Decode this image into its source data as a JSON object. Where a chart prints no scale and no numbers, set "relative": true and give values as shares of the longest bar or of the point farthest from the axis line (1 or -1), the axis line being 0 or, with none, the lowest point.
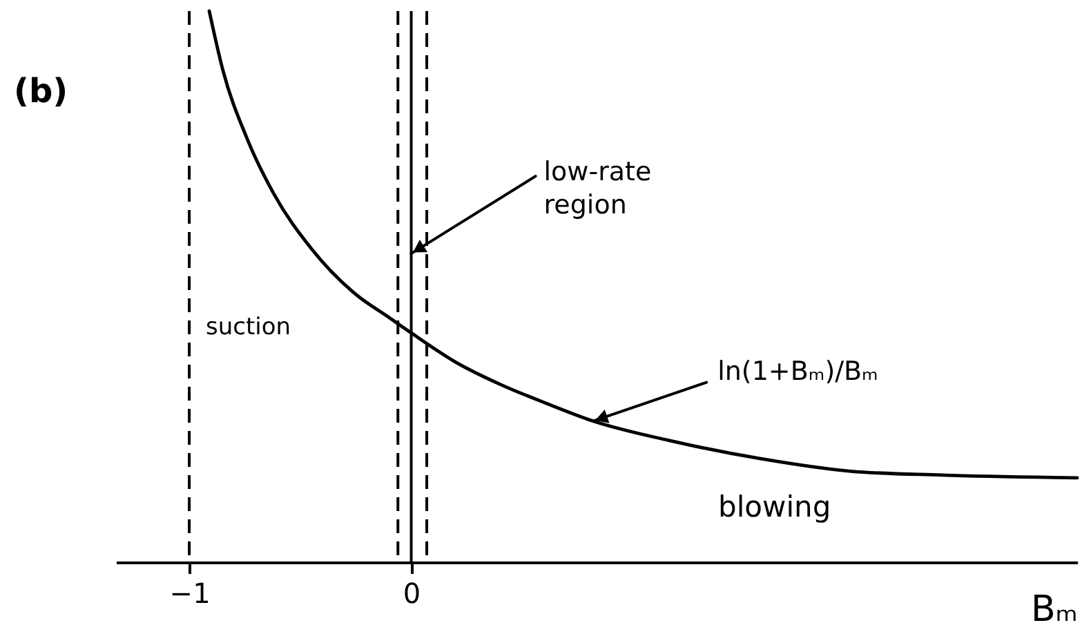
{
  "chart_data": {
    "type": "line",
    "title": "(b)",
    "xlabel": "Bₘ",
    "relative": true,
    "x": [
      -0.91,
      -0.85,
      -0.74,
      -0.62,
      -0.45,
      -0.25,
      -0.1,
      0,
      0.2,
      0.41,
      0.61,
      0.82,
      1.16,
      1.57,
      1.98,
      2.39,
      3.0
    ],
    "series": [
      {
        "color": "#000000",
        "values": [
          1.0,
          0.895,
          0.769,
          0.669,
          0.569,
          0.486,
          0.444,
          0.416,
          0.363,
          0.321,
          0.288,
          0.256,
          0.221,
          0.188,
          0.165,
          0.158,
          0.153
        ]
      }
    ],
    "xlim": [
      -1.33,
      3.0
    ],
    "xticks": [
      -1,
      0
    ],
    "ref_lines": [
      {
        "axis": "x",
        "value": -1,
        "line_style": "dashed",
        "color": "#000000"
      },
      {
        "axis": "x",
        "value": -0.06,
        "line_style": "dashed",
        "color": "#000000"
      },
      {
        "axis": "x",
        "value": 0,
        "line_style": "solid",
        "color": "#000000"
      },
      {
        "axis": "x",
        "value": 0.07,
        "line_style": "dashed",
        "color": "#000000"
      }
    ],
    "annotations": [
      "suction",
      "blowing",
      {
        "text": "low-rate region",
        "x": 0,
        "y": 0.56
      },
      {
        "text": "ln(1+Bₘ)/Bₘ",
        "x": 0.82,
        "y": 0.256
      }
    ]
  }
}
